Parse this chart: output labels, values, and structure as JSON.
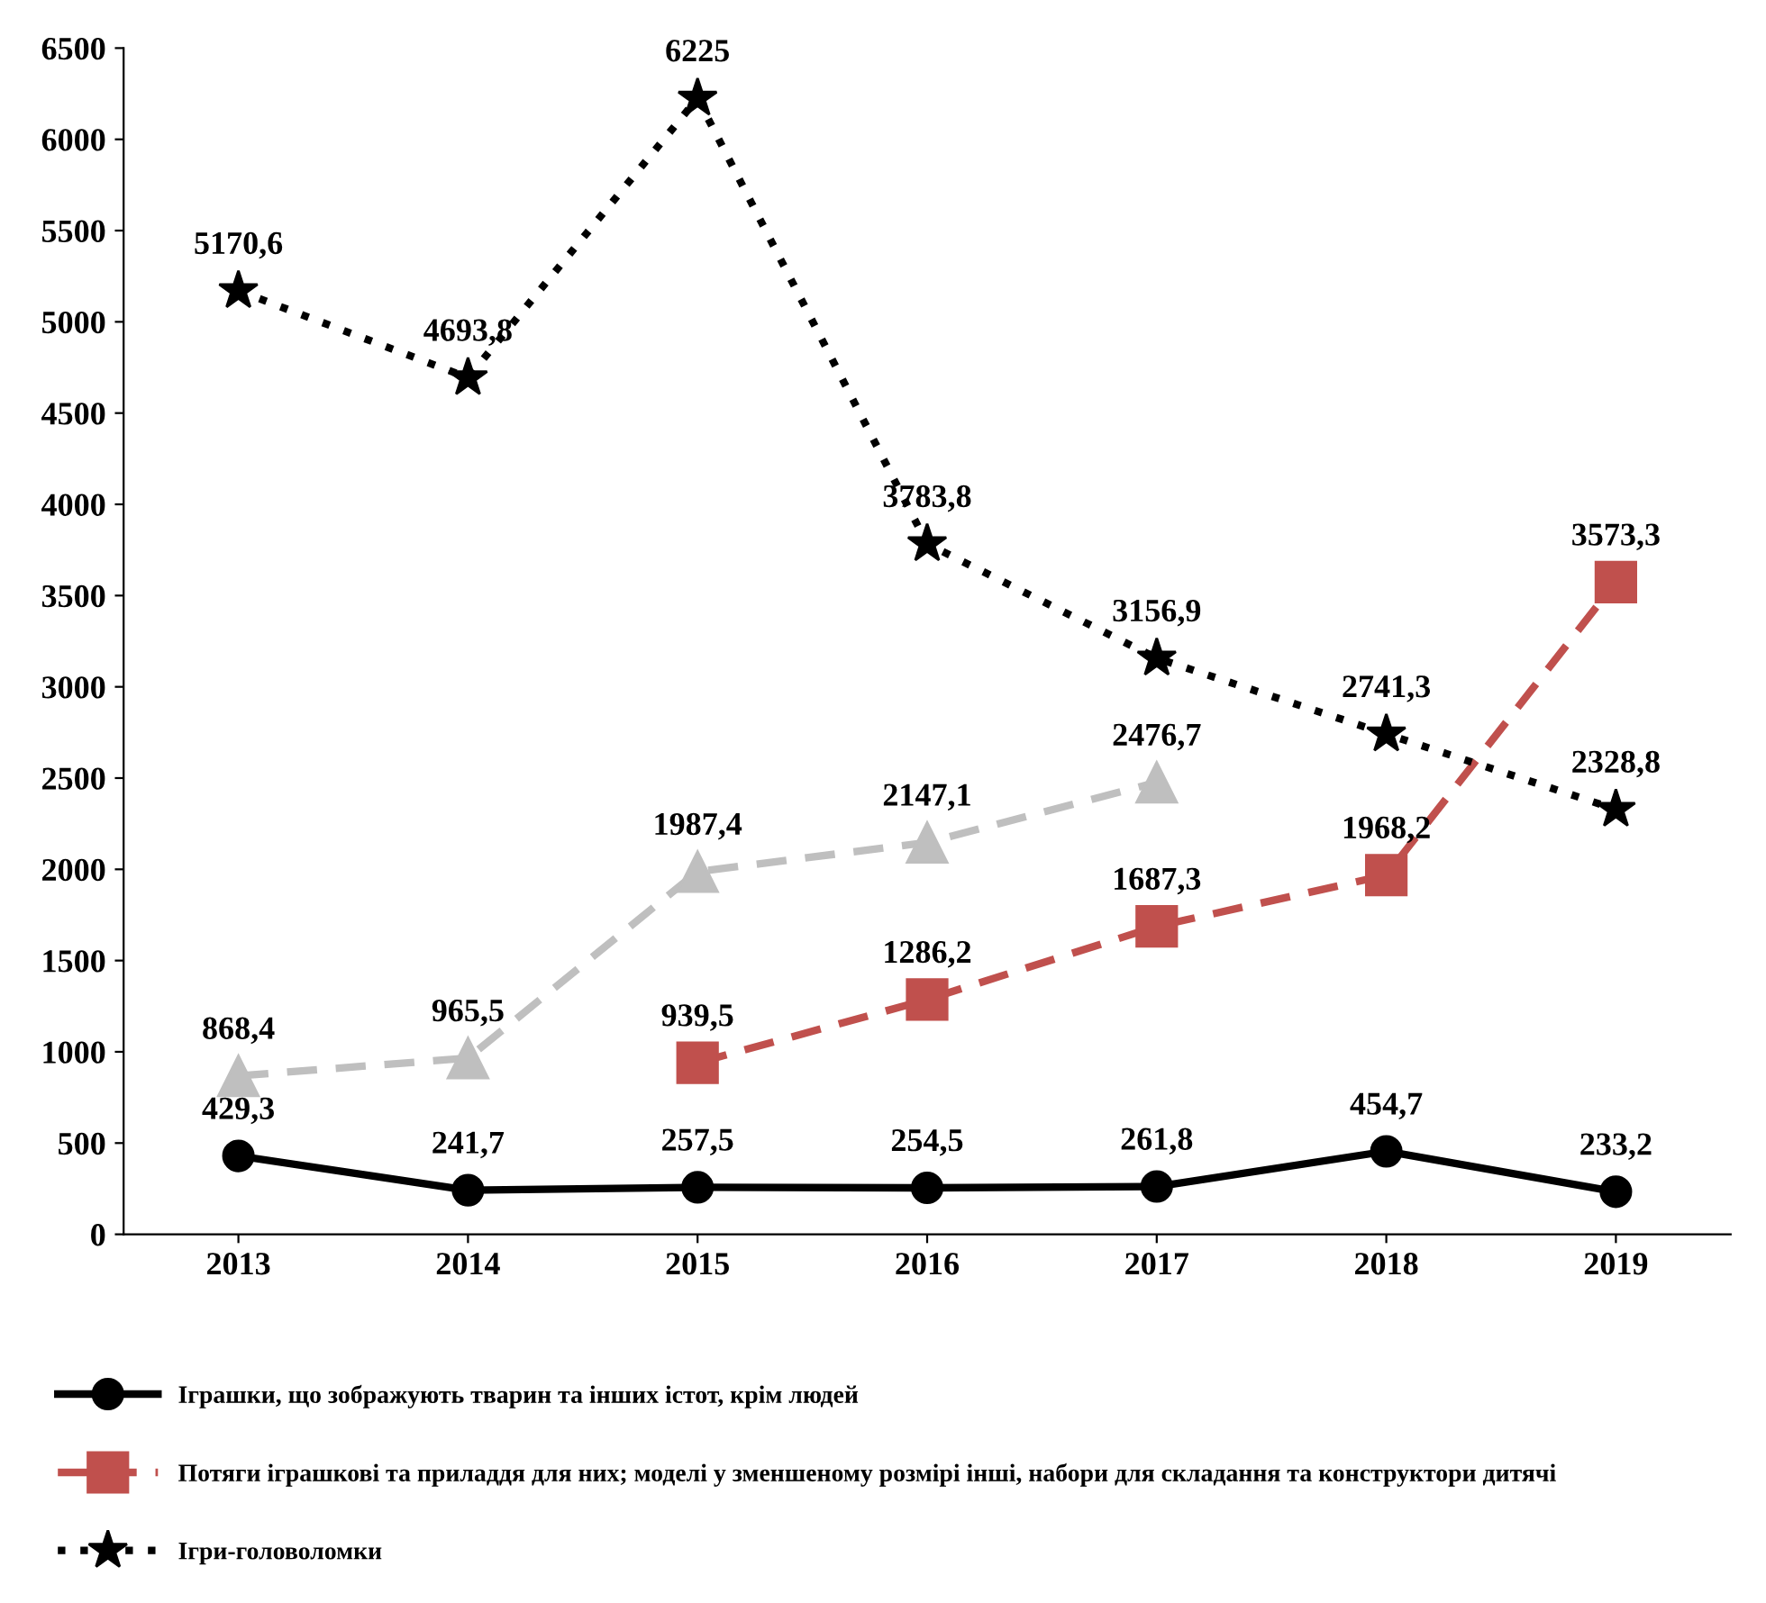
{
  "chart_data": {
    "type": "line",
    "categories": [
      "2013",
      "2014",
      "2015",
      "2016",
      "2017",
      "2018",
      "2019"
    ],
    "series": [
      {
        "name": "Іграшки, що зображують тварин та інших істот, крім людей",
        "color": "#000000",
        "marker": "circle",
        "line_style": "solid",
        "values": [
          429.3,
          241.7,
          257.5,
          254.5,
          261.8,
          454.7,
          233.2
        ],
        "value_labels": [
          "429,3",
          "241,7",
          "257,5",
          "254,5",
          "261,8",
          "454,7",
          "233,2"
        ]
      },
      {
        "name": "Потяги іграшкові та приладдя для них; моделі у зменшеному розмірі інші, набори для складання та конструктори дитячі",
        "color": "#c0504d",
        "marker": "square",
        "line_style": "dashed",
        "values": [
          null,
          null,
          939.5,
          1286.2,
          1687.3,
          1968.2,
          3573.3
        ],
        "value_labels": [
          null,
          null,
          "939,5",
          "1286,2",
          "1687,3",
          "1968,2",
          "3573,3"
        ]
      },
      {
        "name": "Ігри-головоломки",
        "color": "#000000",
        "marker": "star",
        "line_style": "dotted",
        "values": [
          5170.6,
          4693.8,
          6225,
          3783.8,
          3156.9,
          2741.3,
          2328.8
        ],
        "value_labels": [
          "5170,6",
          "4693,8",
          "6225",
          "3783,8",
          "3156,9",
          "2741,3",
          "2328,8"
        ]
      },
      {
        "color": "#bfbfbf",
        "marker": "triangle",
        "line_style": "dashed",
        "values": [
          868.4,
          965.5,
          1987.4,
          2147.1,
          2476.7,
          null,
          null
        ],
        "value_labels": [
          "868,4",
          "965,5",
          "1987,4",
          "2147,1",
          "2476,7",
          null,
          null
        ]
      }
    ],
    "ylim": [
      0,
      6500
    ],
    "yticks": [
      0,
      500,
      1000,
      1500,
      2000,
      2500,
      3000,
      3500,
      4000,
      4500,
      5000,
      5500,
      6000,
      6500
    ],
    "grid": false,
    "legend": "bottom"
  }
}
